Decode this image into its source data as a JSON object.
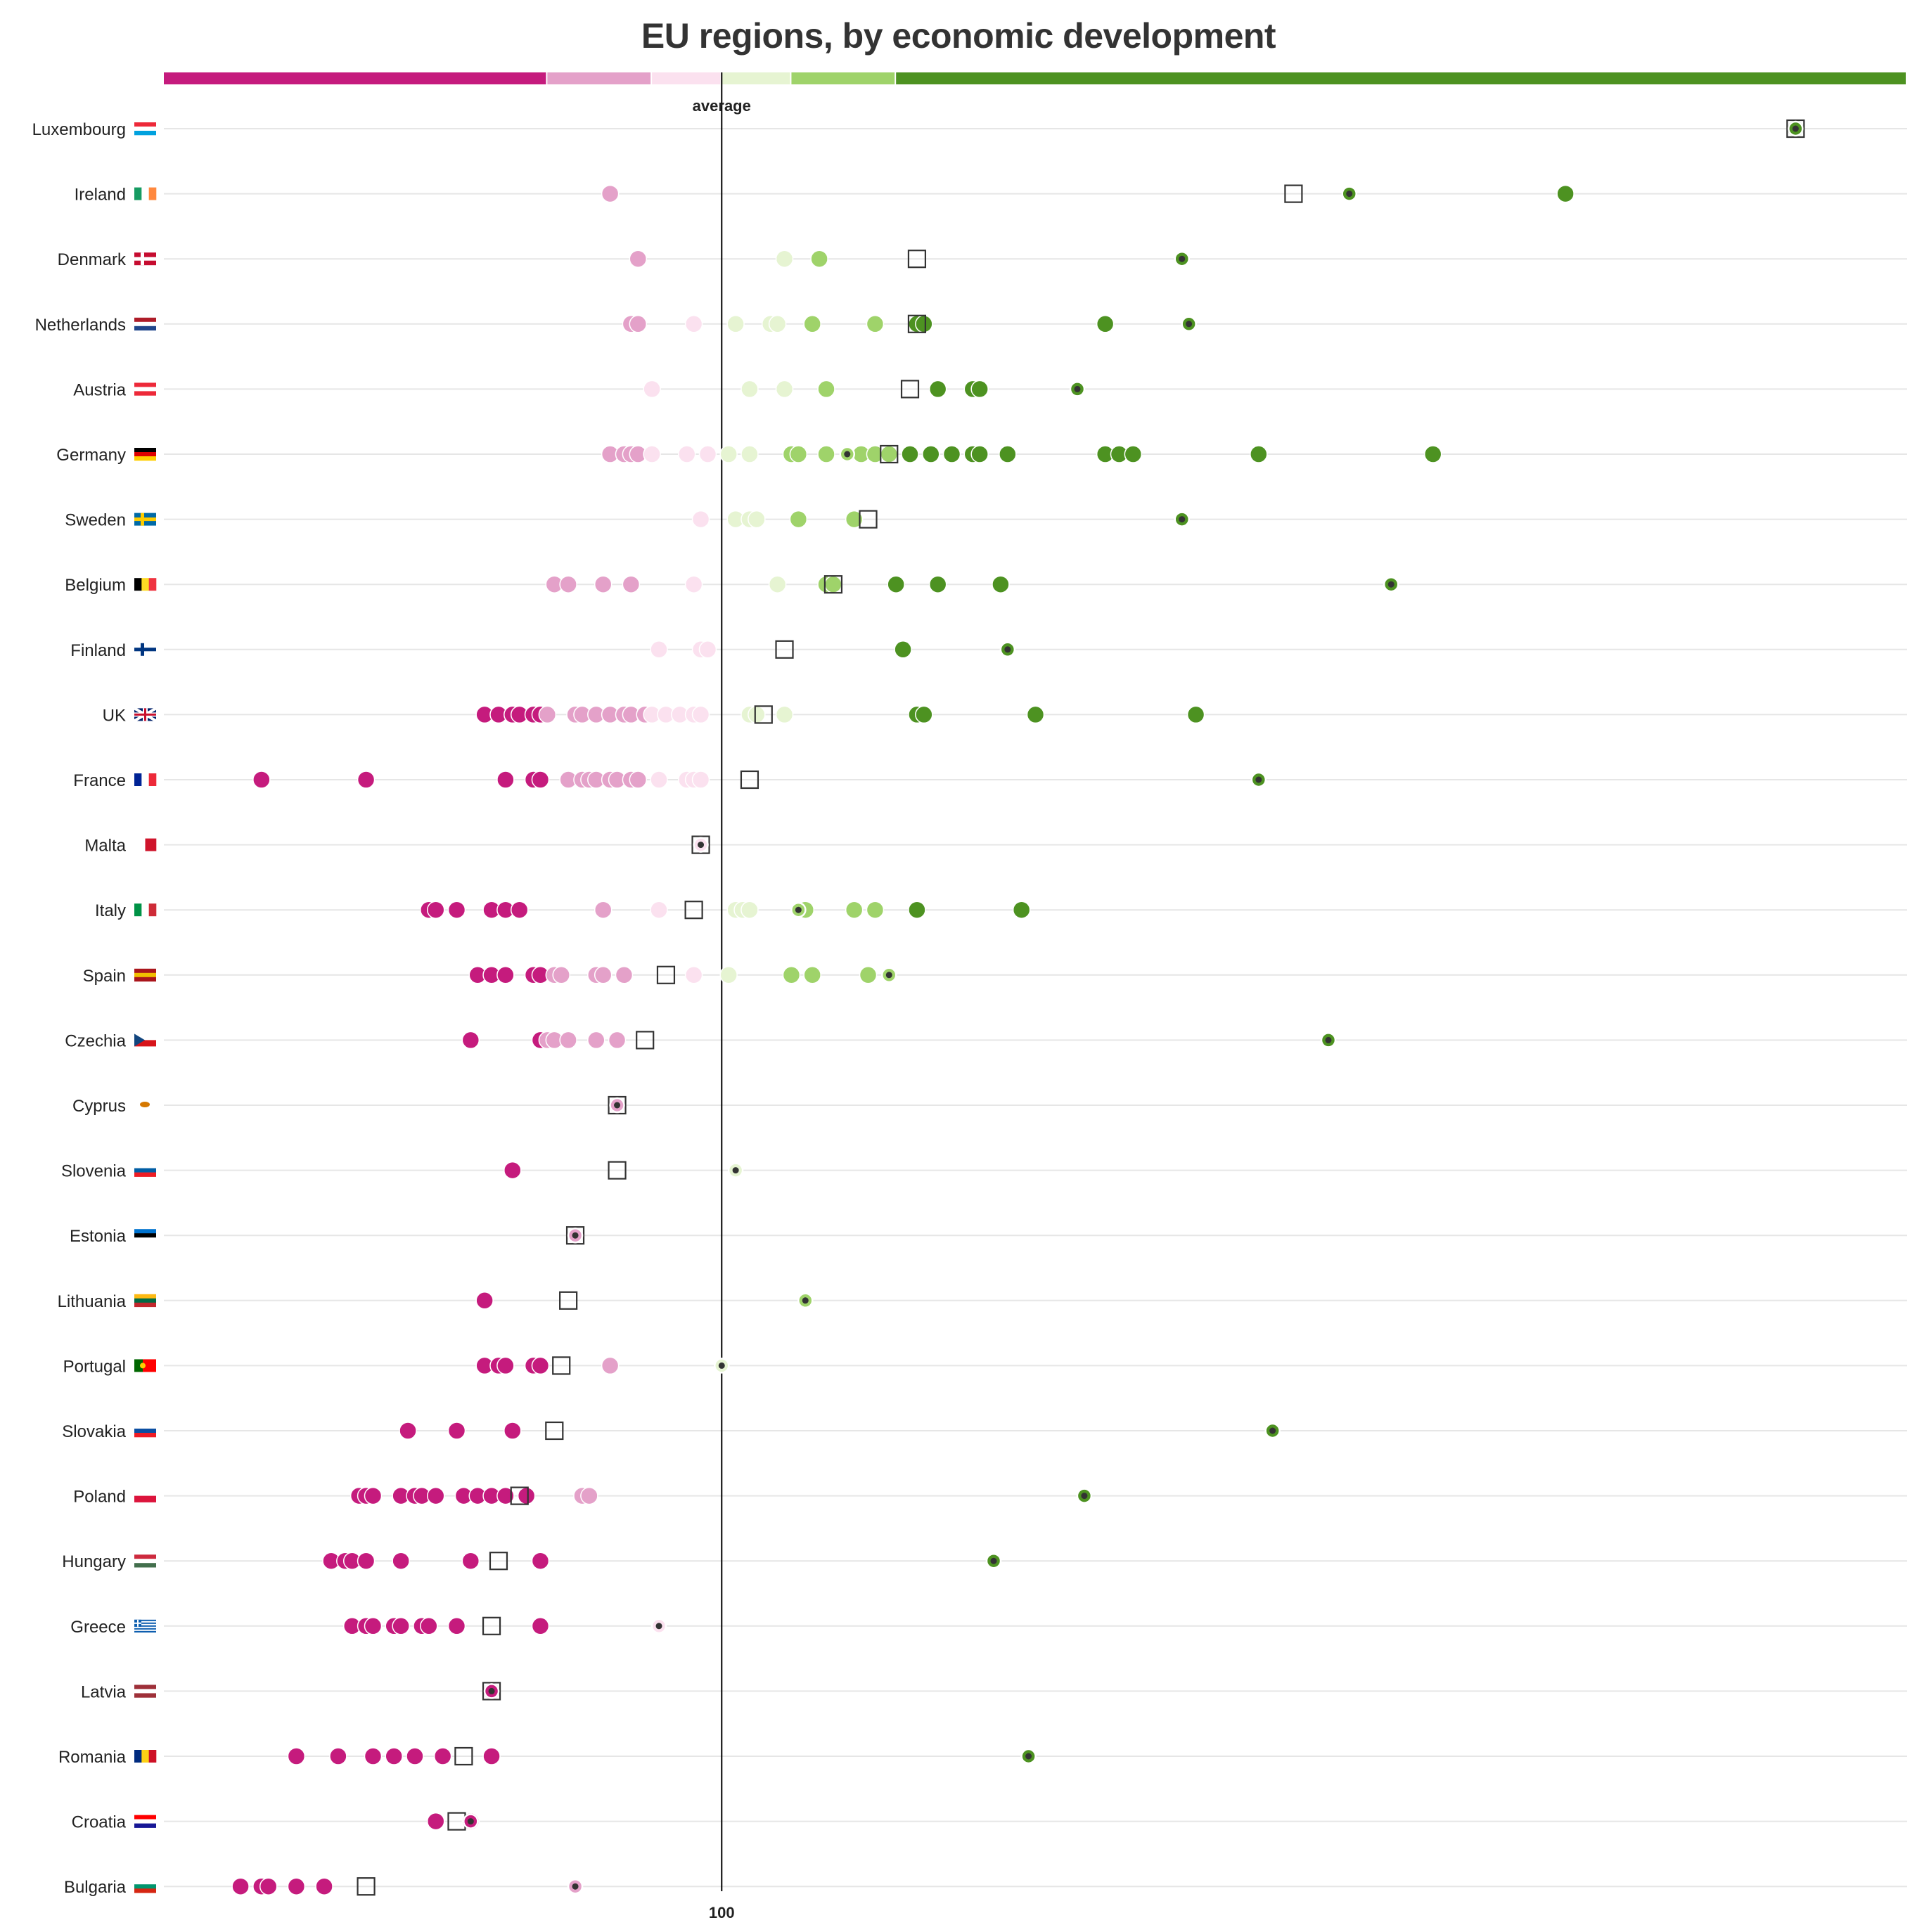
{
  "chart_data": {
    "type": "scatter",
    "title": "EU regions, by economic development",
    "reference_label": "average",
    "x_tick_labels": [
      "100"
    ],
    "reference_value": 100,
    "xlim": [
      20,
      270
    ],
    "grid": "horizontal",
    "colors": {
      "cat1": "#c51b7d",
      "cat2": "#e4a1c9",
      "cat3": "#fbe1ef",
      "cat4": "#e6f4d2",
      "cat5": "#9fd36a",
      "cat6": "#4d9221",
      "axis": "#000000",
      "grid": "#e6e6e6",
      "marker_outline": "#333333"
    },
    "color_scale": [
      {
        "category": "cat1",
        "from": 20,
        "to": 75
      },
      {
        "category": "cat2",
        "from": 75,
        "to": 90
      },
      {
        "category": "cat3",
        "from": 90,
        "to": 100
      },
      {
        "category": "cat4",
        "from": 100,
        "to": 110
      },
      {
        "category": "cat5",
        "from": 110,
        "to": 125
      },
      {
        "category": "cat6",
        "from": 125,
        "to": 270
      }
    ],
    "countries": [
      {
        "name": "Luxembourg",
        "flag_colors": [
          "#ed2939",
          "#ffffff",
          "#00a1de"
        ],
        "country_avg": 254,
        "capital": 254,
        "regions": [
          254
        ]
      },
      {
        "name": "Ireland",
        "flag_colors": [
          "#169b62",
          "#ffffff",
          "#ff883e"
        ],
        "flag_dir": "v",
        "country_avg": 182,
        "capital": 190,
        "regions": [
          84,
          221
        ]
      },
      {
        "name": "Denmark",
        "flag_colors": [
          "#c60c30",
          "#ffffff"
        ],
        "flag_style": "nordic",
        "country_avg": 128,
        "capital": 166,
        "regions": [
          88,
          109,
          114
        ]
      },
      {
        "name": "Netherlands",
        "flag_colors": [
          "#ae1c28",
          "#ffffff",
          "#21468b"
        ],
        "country_avg": 128,
        "capital": 167,
        "regions": [
          87,
          88,
          96,
          102,
          107,
          108,
          113,
          122,
          128,
          129,
          155
        ]
      },
      {
        "name": "Austria",
        "flag_colors": [
          "#ed2939",
          "#ffffff",
          "#ed2939"
        ],
        "country_avg": 127,
        "capital": 151,
        "regions": [
          90,
          104,
          109,
          115,
          131,
          136,
          137
        ]
      },
      {
        "name": "Germany",
        "flag_colors": [
          "#000000",
          "#dd0000",
          "#ffce00"
        ],
        "country_avg": 124,
        "capital": 118,
        "regions": [
          84,
          86,
          87,
          88,
          90,
          95,
          98,
          101,
          104,
          110,
          111,
          115,
          120,
          122,
          124,
          127,
          130,
          133,
          136,
          137,
          141,
          155,
          157,
          159,
          177,
          202
        ]
      },
      {
        "name": "Sweden",
        "flag_colors": [
          "#006aa7",
          "#fecc00"
        ],
        "flag_style": "nordic",
        "country_avg": 121,
        "capital": 166,
        "regions": [
          97,
          102,
          104,
          105,
          111,
          119
        ]
      },
      {
        "name": "Belgium",
        "flag_colors": [
          "#000000",
          "#fdda24",
          "#ef3340"
        ],
        "flag_dir": "v",
        "country_avg": 116,
        "capital": 196,
        "regions": [
          76,
          78,
          83,
          87,
          96,
          108,
          115,
          116,
          125,
          131,
          140
        ]
      },
      {
        "name": "Finland",
        "flag_colors": [
          "#ffffff",
          "#003580"
        ],
        "flag_style": "nordic",
        "country_avg": 109,
        "capital": 141,
        "regions": [
          91,
          97,
          98,
          126
        ]
      },
      {
        "name": "UK",
        "flag_colors": [
          "#012169",
          "#ffffff",
          "#c8102e"
        ],
        "flag_style": "uk",
        "country_avg": 106,
        "capital": 0,
        "regions": [
          66,
          68,
          70,
          71,
          73,
          74,
          75,
          79,
          80,
          82,
          84,
          86,
          87,
          89,
          90,
          92,
          94,
          96,
          97,
          104,
          105,
          109,
          128,
          129,
          145,
          168
        ]
      },
      {
        "name": "France",
        "flag_colors": [
          "#002395",
          "#ffffff",
          "#ed2939"
        ],
        "flag_dir": "v",
        "country_avg": 104,
        "capital": 177,
        "regions": [
          34,
          49,
          69,
          73,
          74,
          78,
          80,
          81,
          82,
          84,
          85,
          87,
          88,
          91,
          95,
          96,
          97
        ]
      },
      {
        "name": "Malta",
        "flag_colors": [
          "#ffffff",
          "#cf142b"
        ],
        "flag_dir": "v",
        "country_avg": 97,
        "capital": 97,
        "regions": [
          97
        ]
      },
      {
        "name": "Italy",
        "flag_colors": [
          "#009246",
          "#ffffff",
          "#ce2b37"
        ],
        "flag_dir": "v",
        "country_avg": 96,
        "capital": 111,
        "regions": [
          58,
          59,
          62,
          67,
          69,
          71,
          83,
          91,
          102,
          103,
          104,
          112,
          119,
          122,
          128,
          143
        ]
      },
      {
        "name": "Spain",
        "flag_colors": [
          "#aa151b",
          "#f1bf00",
          "#aa151b"
        ],
        "country_avg": 92,
        "capital": 124,
        "regions": [
          65,
          67,
          69,
          73,
          74,
          76,
          77,
          82,
          83,
          86,
          96,
          101,
          110,
          113,
          121
        ]
      },
      {
        "name": "Czechia",
        "flag_colors": [
          "#ffffff",
          "#d7141a"
        ],
        "flag_style": "czech",
        "country_avg": 89,
        "capital": 187,
        "regions": [
          64,
          74,
          75,
          76,
          78,
          82,
          85
        ]
      },
      {
        "name": "Cyprus",
        "flag_colors": [
          "#ffffff",
          "#d57800"
        ],
        "flag_style": "cyprus",
        "country_avg": 85,
        "capital": 85,
        "regions": [
          85
        ]
      },
      {
        "name": "Slovenia",
        "flag_colors": [
          "#ffffff",
          "#005da4",
          "#ed1c24"
        ],
        "country_avg": 85,
        "capital": 102,
        "regions": [
          70
        ]
      },
      {
        "name": "Estonia",
        "flag_colors": [
          "#0072ce",
          "#000000",
          "#ffffff"
        ],
        "country_avg": 79,
        "capital": 79,
        "regions": [
          79
        ]
      },
      {
        "name": "Lithuania",
        "flag_colors": [
          "#fdb913",
          "#006a44",
          "#c1272d"
        ],
        "country_avg": 78,
        "capital": 112,
        "regions": [
          66
        ]
      },
      {
        "name": "Portugal",
        "flag_colors": [
          "#006600",
          "#ff0000"
        ],
        "flag_style": "portugal",
        "country_avg": 77,
        "capital": 100,
        "regions": [
          66,
          68,
          69,
          73,
          74,
          84
        ]
      },
      {
        "name": "Slovakia",
        "flag_colors": [
          "#ffffff",
          "#0b4ea2",
          "#ee1c25"
        ],
        "country_avg": 76,
        "capital": 179,
        "regions": [
          55,
          62,
          70
        ]
      },
      {
        "name": "Poland",
        "flag_colors": [
          "#ffffff",
          "#dc143c"
        ],
        "country_avg": 71,
        "capital": 152,
        "regions": [
          48,
          49,
          50,
          54,
          56,
          57,
          59,
          63,
          65,
          67,
          69,
          72,
          80,
          81
        ]
      },
      {
        "name": "Hungary",
        "flag_colors": [
          "#cd2a3e",
          "#ffffff",
          "#436f4d"
        ],
        "country_avg": 68,
        "capital": 139,
        "regions": [
          44,
          46,
          47,
          49,
          54,
          64,
          74
        ]
      },
      {
        "name": "Greece",
        "flag_colors": [
          "#0d5eaf",
          "#ffffff"
        ],
        "flag_style": "greece",
        "country_avg": 67,
        "capital": 91,
        "regions": [
          47,
          49,
          50,
          53,
          54,
          57,
          58,
          62,
          74
        ]
      },
      {
        "name": "Latvia",
        "flag_colors": [
          "#9e3039",
          "#ffffff",
          "#9e3039"
        ],
        "country_avg": 67,
        "capital": 67,
        "regions": [
          67
        ]
      },
      {
        "name": "Romania",
        "flag_colors": [
          "#002b7f",
          "#fcd116",
          "#ce1126"
        ],
        "flag_dir": "v",
        "country_avg": 63,
        "capital": 144,
        "regions": [
          39,
          45,
          50,
          53,
          56,
          60,
          67
        ]
      },
      {
        "name": "Croatia",
        "flag_colors": [
          "#ff0000",
          "#ffffff",
          "#171796"
        ],
        "country_avg": 62,
        "capital": 64,
        "regions": [
          59,
          64
        ]
      },
      {
        "name": "Bulgaria",
        "flag_colors": [
          "#ffffff",
          "#00966e",
          "#d62612"
        ],
        "country_avg": 49,
        "capital": 79,
        "regions": [
          31,
          34,
          35,
          39,
          43
        ]
      }
    ]
  }
}
